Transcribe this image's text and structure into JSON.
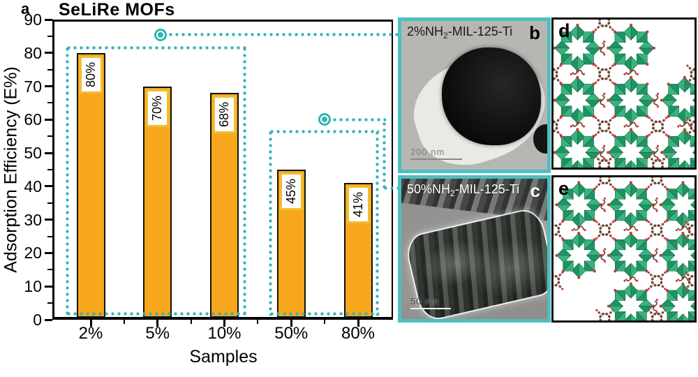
{
  "figure": {
    "panels": {
      "a": {
        "label": "a"
      },
      "b": {
        "label": "b",
        "title_prefix": "2%NH",
        "title_sub": "2",
        "title_suffix": "-MIL-125-Ti",
        "scale_bar": "200 nm"
      },
      "c": {
        "label": "c",
        "title_prefix": "50%NH",
        "title_sub": "2",
        "title_suffix": "-MIL-125-Ti",
        "scale_bar": "50 nm"
      },
      "d": {
        "label": "d"
      },
      "e": {
        "label": "e"
      }
    }
  },
  "chart_data": {
    "type": "bar",
    "title": "SeLiRe MOFs",
    "xlabel": "Samples",
    "ylabel": "Adsorption Efficiency (E%)",
    "categories": [
      "2%",
      "5%",
      "10%",
      "50%",
      "80%"
    ],
    "values": [
      80,
      70,
      68,
      45,
      41
    ],
    "bar_labels": [
      "80%",
      "70%",
      "68%",
      "45%",
      "41%"
    ],
    "ylim": [
      0,
      90
    ],
    "ytick_step": 10,
    "ytick_minor_step": 5,
    "grid": false,
    "legend": null,
    "bar_color": "#F7A71C",
    "bar_label_box": {
      "fill": "#FFFFFF",
      "border": "#F0BE30"
    },
    "annotations": {
      "group_boxes": [
        {
          "bars": [
            0,
            1,
            2
          ],
          "top_value": 82,
          "style": "dotted",
          "color": "#2FB5B6"
        },
        {
          "bars": [
            3,
            4
          ],
          "top_value": 57,
          "style": "dotted",
          "color": "#2FB5B6"
        }
      ],
      "callouts": [
        {
          "from_value": 85.5,
          "links_to_panel": "b"
        },
        {
          "from_value": 60,
          "links_to_panel": "c"
        }
      ]
    }
  },
  "colors": {
    "teal_border": "#4CC0C2",
    "teal_dots": "#2FB5B6",
    "bar_orange": "#F7A71C",
    "label_gold": "#F0BE30",
    "mof_green_dark": "#1F9463",
    "mof_green_light": "#3BB27E",
    "mof_red": "#C43B35",
    "mof_brown": "#6D4231",
    "mof_tan": "#C9A98F"
  }
}
